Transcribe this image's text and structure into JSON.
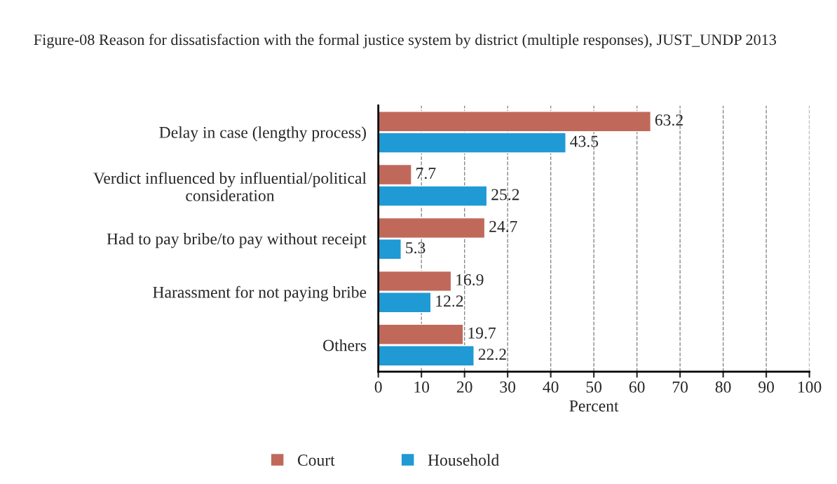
{
  "chart_data": {
    "type": "bar",
    "orientation": "horizontal",
    "title": "Figure-08 Reason for dissatisfaction with the formal justice system by district (multiple responses), JUST_UNDP 2013",
    "categories": [
      "Delay in case (lengthy process)",
      "Verdict influenced by influential/political consideration",
      "Had to pay bribe/to pay without receipt",
      "Harassment for not paying bribe",
      "Others"
    ],
    "series": [
      {
        "name": "Court",
        "color": "#c0695b",
        "values": [
          63.2,
          7.7,
          24.7,
          16.9,
          19.7
        ]
      },
      {
        "name": "Household",
        "color": "#1f9ad5",
        "values": [
          43.5,
          25.2,
          5.3,
          12.2,
          22.2
        ]
      }
    ],
    "xlabel": "Percent",
    "xlim": [
      0,
      100
    ],
    "xticks": [
      0,
      10,
      20,
      30,
      40,
      50,
      60,
      70,
      80,
      90,
      100
    ],
    "grid": "x",
    "legend": "bottom",
    "data_labels": true
  }
}
